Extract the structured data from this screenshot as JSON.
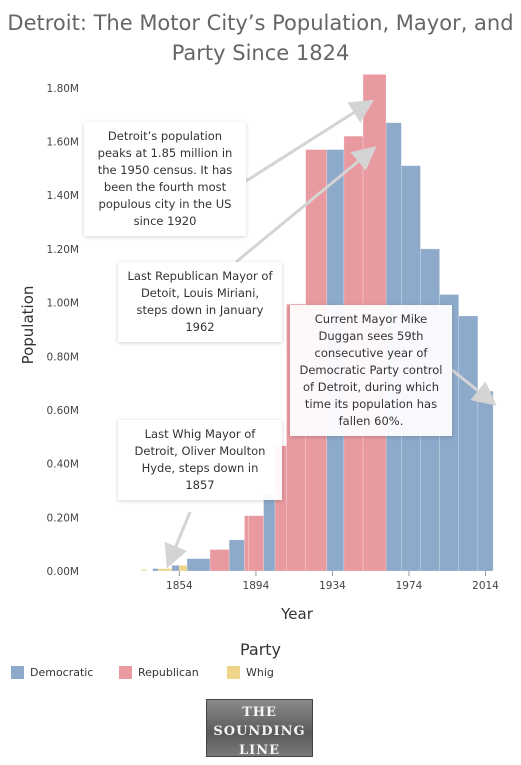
{
  "title": "Detroit: The Motor City’s Population, Mayor, and Party Since 1824",
  "colors": {
    "Democratic": "#8eaacb",
    "Republican": "#e89aa0",
    "Whig": "#efd58a"
  },
  "annotations": {
    "peak": "Detroit’s population peaks at 1.85 million in the 1950 census. It has been the fourth most populous city in the US since 1920",
    "last_republican": "Last Republican Mayor of Detoit, Louis Miriani, steps down in January 1962",
    "current": "Current Mayor Mike Duggan sees 59th consecutive year of Democratic Party control of Detroit, during which time its population has fallen 60%.",
    "last_whig": "Last Whig Mayor of Detroit, Oliver Moulton Hyde, steps down in 1857"
  },
  "legend": {
    "title": "Party",
    "items": [
      {
        "label": "Democratic",
        "color": "#8eaacb"
      },
      {
        "label": "Republican",
        "color": "#e89aa0"
      },
      {
        "label": "Whig",
        "color": "#efd58a"
      }
    ]
  },
  "logo": {
    "line1": "THE",
    "line2": "SOUNDING",
    "line3": "LINE"
  },
  "chart_data": {
    "type": "bar",
    "xlabel": "Year",
    "ylabel": "Population",
    "xlim": [
      1824,
      2020
    ],
    "ylim": [
      0,
      1.9
    ],
    "y_unit": "millions",
    "x_ticks": [
      "1854",
      "1894",
      "1934",
      "1974",
      "2014"
    ],
    "y_ticks": [
      "0.00M",
      "0.20M",
      "0.40M",
      "0.60M",
      "0.80M",
      "1.00M",
      "1.20M",
      "1.40M",
      "1.60M",
      "1.80M"
    ],
    "grid": false,
    "legend_position": "bottom",
    "series": [
      {
        "name": "Democratic",
        "segments": [
          {
            "start": 1840,
            "end": 1843,
            "value": 0.009
          },
          {
            "start": 1850,
            "end": 1854,
            "value": 0.021
          },
          {
            "start": 1858,
            "end": 1870,
            "value": 0.046
          },
          {
            "start": 1880,
            "end": 1888,
            "value": 0.116
          },
          {
            "start": 1898,
            "end": 1904,
            "value": 0.286
          },
          {
            "start": 1931,
            "end": 1940,
            "value": 1.57
          },
          {
            "start": 1962,
            "end": 1970,
            "value": 1.67
          },
          {
            "start": 1970,
            "end": 1980,
            "value": 1.51
          },
          {
            "start": 1980,
            "end": 1990,
            "value": 1.2
          },
          {
            "start": 1990,
            "end": 2000,
            "value": 1.03
          },
          {
            "start": 2000,
            "end": 2010,
            "value": 0.95
          },
          {
            "start": 2010,
            "end": 2018,
            "value": 0.67
          }
        ]
      },
      {
        "name": "Republican",
        "segments": [
          {
            "start": 1870,
            "end": 1880,
            "value": 0.08
          },
          {
            "start": 1888,
            "end": 1890,
            "value": 0.206
          },
          {
            "start": 1890,
            "end": 1898,
            "value": 0.206
          },
          {
            "start": 1904,
            "end": 1910,
            "value": 0.466
          },
          {
            "start": 1910,
            "end": 1920,
            "value": 0.994
          },
          {
            "start": 1920,
            "end": 1931,
            "value": 1.57
          },
          {
            "start": 1940,
            "end": 1950,
            "value": 1.62
          },
          {
            "start": 1950,
            "end": 1962,
            "value": 1.85
          }
        ]
      },
      {
        "name": "Whig",
        "segments": [
          {
            "start": 1834,
            "end": 1837,
            "value": 0.005
          },
          {
            "start": 1843,
            "end": 1850,
            "value": 0.009
          },
          {
            "start": 1854,
            "end": 1858,
            "value": 0.021
          }
        ]
      }
    ]
  }
}
